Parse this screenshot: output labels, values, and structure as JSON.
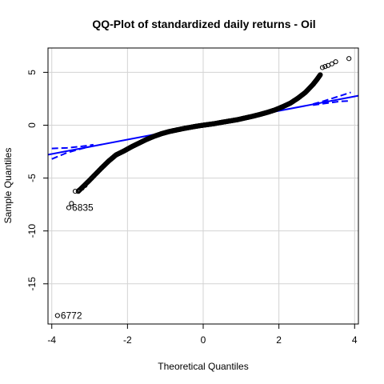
{
  "chart_data": {
    "type": "scatter",
    "title": "QQ-Plot of standardized daily returns - Oil",
    "xlabel": "Theoretical Quantiles",
    "ylabel": "Sample Quantiles",
    "xlim": [
      -4.1,
      4.1
    ],
    "ylim": [
      -18.8,
      7.3
    ],
    "x_ticks": [
      -4,
      -2,
      0,
      2,
      4
    ],
    "x_tick_labels": [
      "-4",
      "-2",
      "0",
      "2",
      "4"
    ],
    "y_ticks": [
      -15,
      -10,
      -5,
      0,
      5
    ],
    "y_tick_labels": [
      "-15",
      "-10",
      "-5",
      "0",
      "5"
    ],
    "grid": true,
    "colors": {
      "points": "#000000",
      "reference_line": "#0000ff",
      "band": "#0000ff",
      "grid": "#d3d3d3"
    },
    "quantile_curve": [
      [
        -3.3,
        -6.25
      ],
      [
        -3.0,
        -5.2
      ],
      [
        -2.7,
        -4.1
      ],
      [
        -2.5,
        -3.4
      ],
      [
        -2.3,
        -2.8
      ],
      [
        -2.1,
        -2.45
      ],
      [
        -1.9,
        -2.05
      ],
      [
        -1.7,
        -1.7
      ],
      [
        -1.5,
        -1.35
      ],
      [
        -1.3,
        -1.05
      ],
      [
        -1.1,
        -0.8
      ],
      [
        -0.9,
        -0.6
      ],
      [
        -0.7,
        -0.45
      ],
      [
        -0.5,
        -0.3
      ],
      [
        -0.3,
        -0.17
      ],
      [
        -0.1,
        -0.05
      ],
      [
        0.1,
        0.05
      ],
      [
        0.3,
        0.15
      ],
      [
        0.5,
        0.28
      ],
      [
        0.7,
        0.4
      ],
      [
        0.9,
        0.52
      ],
      [
        1.1,
        0.68
      ],
      [
        1.3,
        0.84
      ],
      [
        1.5,
        1.02
      ],
      [
        1.7,
        1.22
      ],
      [
        1.9,
        1.45
      ],
      [
        2.1,
        1.75
      ],
      [
        2.3,
        2.08
      ],
      [
        2.5,
        2.55
      ],
      [
        2.7,
        3.1
      ],
      [
        2.9,
        3.85
      ],
      [
        3.0,
        4.3
      ],
      [
        3.1,
        4.8
      ]
    ],
    "tail_points": [
      {
        "x": -3.85,
        "y": -18.0,
        "label": "6772"
      },
      {
        "x": -3.55,
        "y": -7.8,
        "label": "6835"
      },
      {
        "x": -3.48,
        "y": -7.4
      },
      {
        "x": -3.38,
        "y": -6.25
      },
      {
        "x": -3.28,
        "y": -6.15
      },
      {
        "x": -3.2,
        "y": -5.95
      },
      {
        "x": -3.12,
        "y": -5.7
      },
      {
        "x": 3.15,
        "y": 5.45
      },
      {
        "x": 3.22,
        "y": 5.55
      },
      {
        "x": 3.3,
        "y": 5.65
      },
      {
        "x": 3.4,
        "y": 5.8
      },
      {
        "x": 3.5,
        "y": 6.0
      },
      {
        "x": 3.85,
        "y": 6.3
      }
    ],
    "reference_line": {
      "intercept": 0.0,
      "slope": 0.68
    },
    "confidence_band": [
      {
        "x": [
          -4.0,
          -3.6,
          -3.2,
          -2.9
        ],
        "y": [
          -3.2,
          -2.6,
          -2.2,
          -1.95
        ]
      },
      {
        "x": [
          -4.0,
          -3.6,
          -3.2,
          -2.9
        ],
        "y": [
          -2.2,
          -2.15,
          -2.0,
          -1.85
        ]
      },
      {
        "x": [
          2.9,
          3.2,
          3.6,
          3.9
        ],
        "y": [
          1.9,
          2.05,
          2.25,
          2.3
        ]
      },
      {
        "x": [
          2.9,
          3.2,
          3.6,
          3.9
        ],
        "y": [
          2.0,
          2.3,
          2.75,
          3.1
        ]
      }
    ]
  }
}
